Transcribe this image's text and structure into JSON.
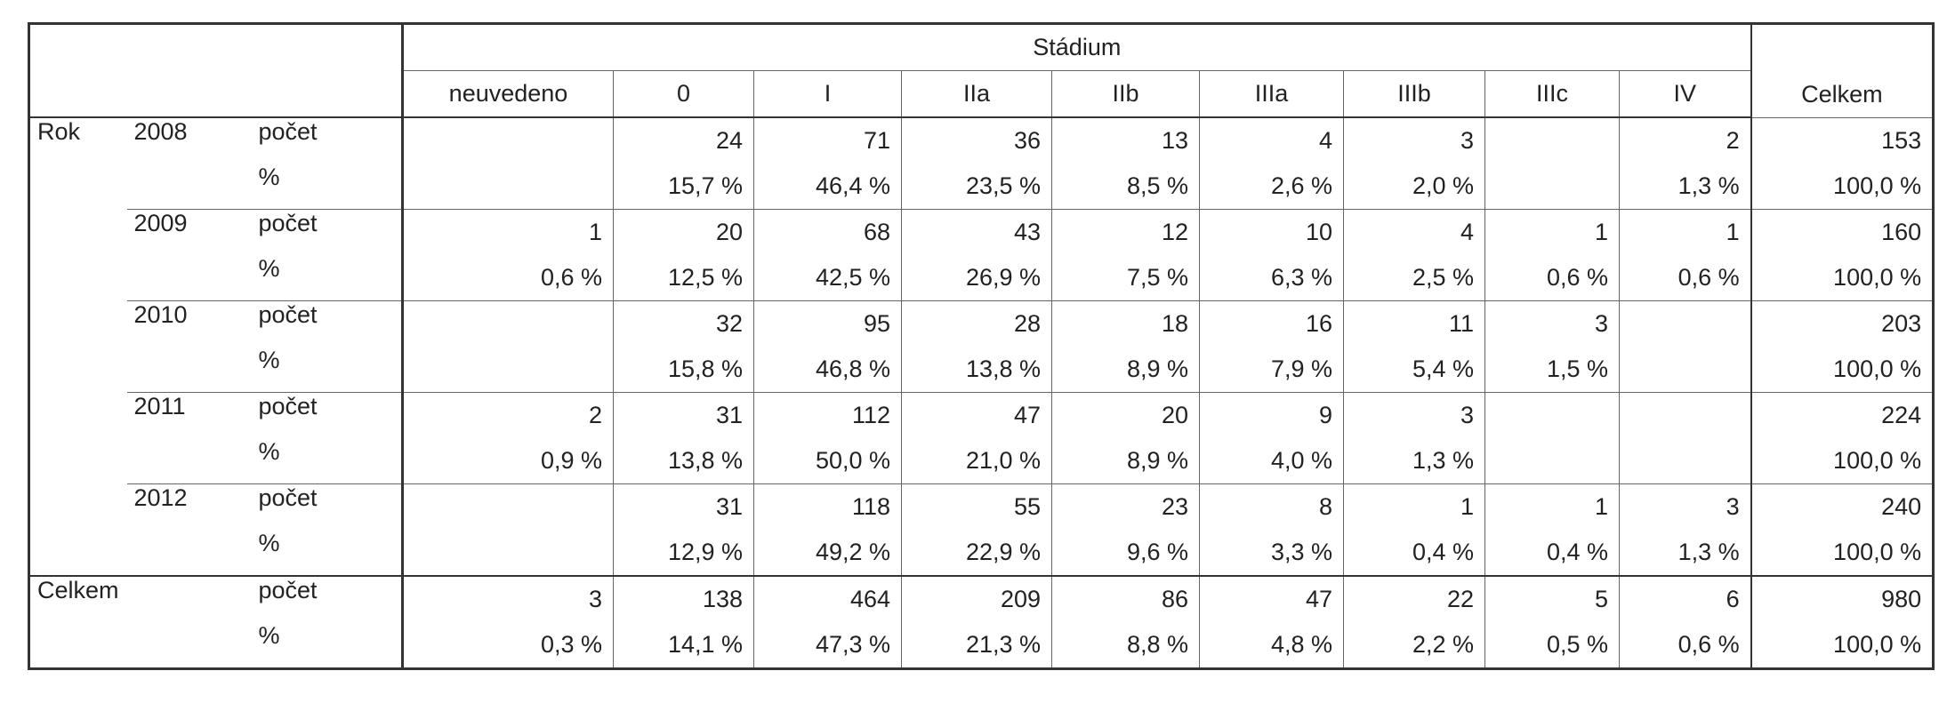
{
  "table": {
    "group_header": "Stádium",
    "columns": [
      "neuvedeno",
      "0",
      "I",
      "IIa",
      "IIb",
      "IIIa",
      "IIIb",
      "IIIc",
      "IV"
    ],
    "total_header": "Celkem",
    "row_group_label": "Rok",
    "rows": [
      {
        "year": "2008",
        "count_label": "počet",
        "pct_label": "%",
        "counts": [
          null,
          24,
          71,
          36,
          13,
          4,
          3,
          null,
          2
        ],
        "percents": [
          null,
          "15,7 %",
          "46,4 %",
          "23,5 %",
          "8,5 %",
          "2,6 %",
          "2,0 %",
          null,
          "1,3 %"
        ],
        "total_count": 153,
        "total_percent": "100,0 %"
      },
      {
        "year": "2009",
        "count_label": "počet",
        "pct_label": "%",
        "counts": [
          1,
          20,
          68,
          43,
          12,
          10,
          4,
          1,
          1
        ],
        "percents": [
          "0,6 %",
          "12,5 %",
          "42,5 %",
          "26,9 %",
          "7,5 %",
          "6,3 %",
          "2,5 %",
          "0,6 %",
          "0,6 %"
        ],
        "total_count": 160,
        "total_percent": "100,0 %"
      },
      {
        "year": "2010",
        "count_label": "počet",
        "pct_label": "%",
        "counts": [
          null,
          32,
          95,
          28,
          18,
          16,
          11,
          3,
          null
        ],
        "percents": [
          null,
          "15,8 %",
          "46,8 %",
          "13,8 %",
          "8,9 %",
          "7,9 %",
          "5,4 %",
          "1,5 %",
          null
        ],
        "total_count": 203,
        "total_percent": "100,0 %"
      },
      {
        "year": "2011",
        "count_label": "počet",
        "pct_label": "%",
        "counts": [
          2,
          31,
          112,
          47,
          20,
          9,
          3,
          null,
          null
        ],
        "percents": [
          "0,9 %",
          "13,8 %",
          "50,0 %",
          "21,0 %",
          "8,9 %",
          "4,0 %",
          "1,3 %",
          null,
          null
        ],
        "total_count": 224,
        "total_percent": "100,0 %"
      },
      {
        "year": "2012",
        "count_label": "počet",
        "pct_label": "%",
        "counts": [
          null,
          31,
          118,
          55,
          23,
          8,
          1,
          1,
          3
        ],
        "percents": [
          null,
          "12,9 %",
          "49,2 %",
          "22,9 %",
          "9,6 %",
          "3,3 %",
          "0,4 %",
          "0,4 %",
          "1,3 %"
        ],
        "total_count": 240,
        "total_percent": "100,0 %"
      }
    ],
    "total": {
      "label": "Celkem",
      "count_label": "počet",
      "pct_label": "%",
      "counts": [
        3,
        138,
        464,
        209,
        86,
        47,
        22,
        5,
        6
      ],
      "percents": [
        "0,3 %",
        "14,1 %",
        "47,3 %",
        "21,3 %",
        "8,8 %",
        "4,8 %",
        "2,2 %",
        "0,5 %",
        "0,6 %"
      ],
      "total_count": 980,
      "total_percent": "100,0 %"
    }
  }
}
